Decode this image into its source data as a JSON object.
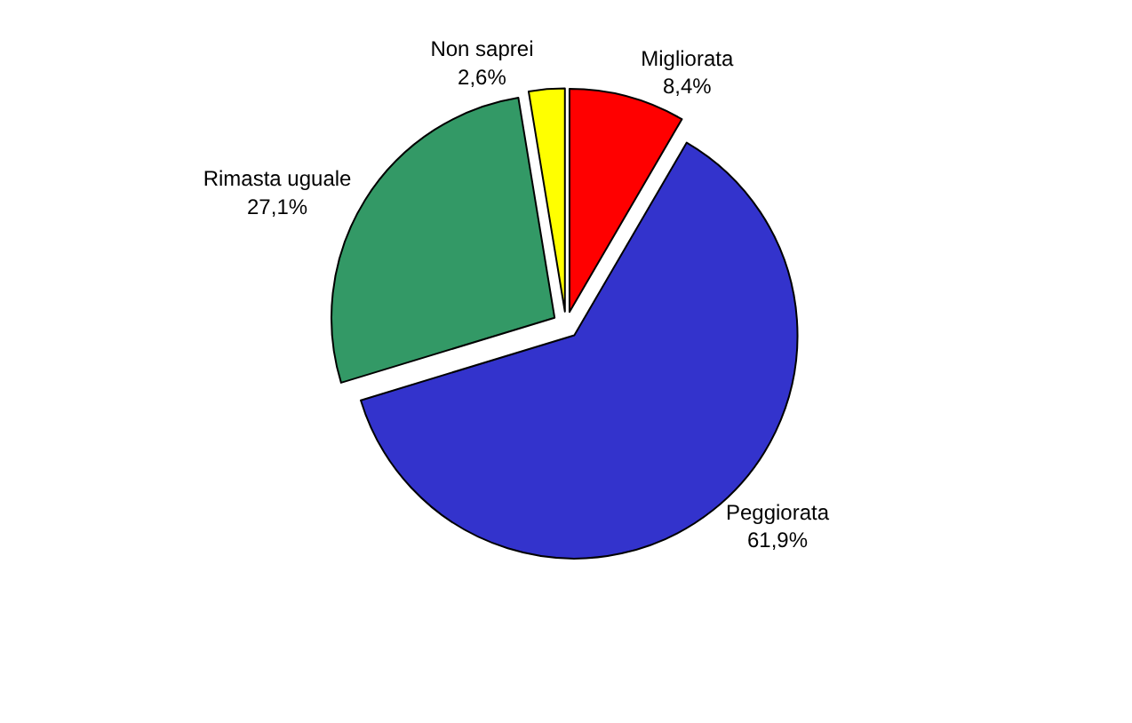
{
  "chart_data": {
    "type": "pie",
    "categories": [
      "Migliorata",
      "Peggiorata",
      "Rimasta uguale",
      "Non saprei"
    ],
    "values": [
      8.4,
      61.9,
      27.1,
      2.6
    ],
    "value_labels": [
      "8,4%",
      "61,9%",
      "27,1%",
      "2,6%"
    ],
    "colors": [
      "#ff0000",
      "#3333cc",
      "#339966",
      "#ffff00"
    ],
    "legend": false
  }
}
